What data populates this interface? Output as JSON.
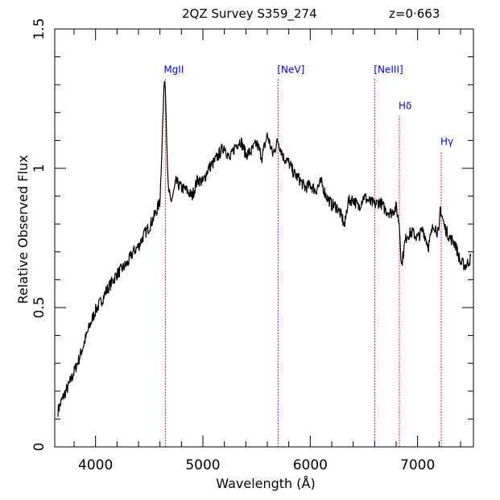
{
  "chart_data": {
    "type": "line",
    "title_left": "2QZ Survey S359_274",
    "title_right": "z=0·663",
    "xlabel": "Wavelength (Å)",
    "ylabel": "Relative Observed Flux",
    "xlim": [
      3620,
      7520
    ],
    "ylim": [
      0,
      1.5
    ],
    "xticks": [
      4000,
      5000,
      6000,
      7000
    ],
    "yticks": [
      0,
      0.5,
      1,
      1.5
    ],
    "ytick_labels": [
      "0",
      "0.5",
      "1",
      "1.5"
    ],
    "spectrum": {
      "x": [
        3650,
        3700,
        3750,
        3800,
        3850,
        3900,
        3950,
        4000,
        4050,
        4100,
        4150,
        4200,
        4250,
        4300,
        4350,
        4400,
        4450,
        4500,
        4550,
        4600,
        4620,
        4640,
        4650,
        4660,
        4670,
        4680,
        4700,
        4720,
        4750,
        4800,
        4850,
        4900,
        4950,
        5000,
        5050,
        5100,
        5150,
        5200,
        5250,
        5300,
        5350,
        5400,
        5450,
        5500,
        5550,
        5600,
        5650,
        5700,
        5750,
        5800,
        5850,
        5900,
        5950,
        6000,
        6050,
        6100,
        6150,
        6200,
        6250,
        6300,
        6320,
        6350,
        6400,
        6450,
        6500,
        6550,
        6600,
        6650,
        6700,
        6750,
        6800,
        6830,
        6850,
        6880,
        6900,
        6950,
        7000,
        7050,
        7100,
        7150,
        7200,
        7210,
        7250,
        7300,
        7350,
        7400,
        7450,
        7500
      ],
      "y": [
        0.13,
        0.18,
        0.22,
        0.27,
        0.32,
        0.38,
        0.44,
        0.49,
        0.52,
        0.56,
        0.59,
        0.62,
        0.64,
        0.66,
        0.7,
        0.72,
        0.76,
        0.79,
        0.83,
        0.88,
        1.1,
        1.32,
        1.29,
        1.15,
        1.0,
        0.92,
        0.88,
        0.9,
        0.95,
        0.93,
        0.92,
        0.9,
        0.96,
        0.95,
        1.0,
        1.02,
        1.05,
        1.08,
        1.03,
        1.08,
        1.1,
        1.05,
        1.06,
        1.09,
        1.04,
        1.12,
        1.05,
        1.1,
        1.04,
        1.02,
        0.98,
        0.96,
        0.93,
        0.94,
        0.92,
        0.95,
        0.9,
        0.87,
        0.86,
        0.82,
        0.79,
        0.88,
        0.89,
        0.86,
        0.9,
        0.88,
        0.87,
        0.88,
        0.85,
        0.84,
        0.86,
        0.8,
        0.65,
        0.73,
        0.76,
        0.77,
        0.75,
        0.78,
        0.72,
        0.8,
        0.76,
        0.86,
        0.79,
        0.75,
        0.73,
        0.66,
        0.65,
        0.68
      ]
    },
    "emission_lines": [
      {
        "label": "MgII",
        "x": 4650,
        "top": 1.32
      },
      {
        "label": "[NeV]",
        "x": 5700,
        "top": 1.32
      },
      {
        "label": "[NeIII]",
        "x": 6600,
        "top": 1.32
      },
      {
        "label": "Hδ",
        "x": 6830,
        "top": 1.19
      },
      {
        "label": "Hγ",
        "x": 7220,
        "top": 1.06
      }
    ],
    "colors": {
      "spectrum": "#000000",
      "line_marker": "#ff0000",
      "line_label": "#0000ff",
      "frame": "#000000",
      "background": "#ffffff"
    },
    "grid": false
  }
}
